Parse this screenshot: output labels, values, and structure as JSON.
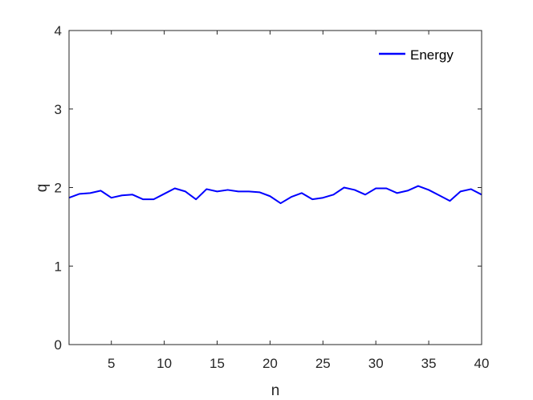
{
  "chart_data": {
    "type": "line",
    "xlabel": "n",
    "ylabel": "q",
    "xlim": [
      1,
      40
    ],
    "ylim": [
      0,
      4
    ],
    "x_ticks": [
      5,
      10,
      15,
      20,
      25,
      30,
      35,
      40
    ],
    "y_ticks": [
      0,
      1,
      2,
      3,
      4
    ],
    "grid": false,
    "legend_position": "top-right",
    "series": [
      {
        "name": "Energy",
        "color": "#0000ff",
        "x": [
          1,
          2,
          3,
          4,
          5,
          6,
          7,
          8,
          9,
          10,
          11,
          12,
          13,
          14,
          15,
          16,
          17,
          18,
          19,
          20,
          21,
          22,
          23,
          24,
          25,
          26,
          27,
          28,
          29,
          30,
          31,
          32,
          33,
          34,
          35,
          36,
          37,
          38,
          39,
          40
        ],
        "y": [
          1.87,
          1.92,
          1.93,
          1.96,
          1.87,
          1.9,
          1.91,
          1.85,
          1.85,
          1.92,
          1.99,
          1.95,
          1.85,
          1.98,
          1.95,
          1.97,
          1.95,
          1.95,
          1.94,
          1.89,
          1.8,
          1.88,
          1.93,
          1.85,
          1.87,
          1.91,
          2.0,
          1.97,
          1.91,
          1.99,
          1.99,
          1.93,
          1.96,
          2.02,
          1.97,
          1.9,
          1.83,
          1.95,
          1.98,
          1.91
        ]
      }
    ]
  }
}
